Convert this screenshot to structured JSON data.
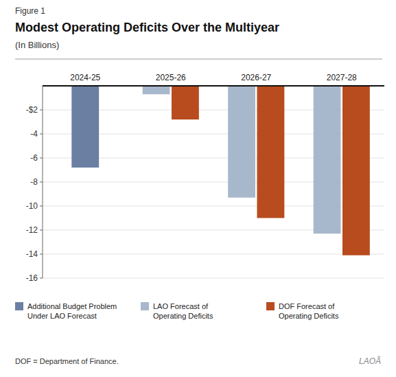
{
  "chart_data": {
    "type": "bar",
    "title": "Modest Operating Deficits Over the Multiyear",
    "subtitle": "(In Billions)",
    "annotations": [
      "Figure 1",
      "DOF = Department of Finance.",
      "LAOÂ"
    ],
    "categories": [
      "2024-25",
      "2025-26",
      "2026-27",
      "2027-28"
    ],
    "series": [
      {
        "name": "Additional Budget Problem\nUnder LAO Forecast",
        "color": "#6b7fa3",
        "values": [
          -6.8,
          null,
          null,
          null
        ]
      },
      {
        "name": "LAO Forecast of\nOperating Deficits",
        "color": "#a8b8cc",
        "values": [
          null,
          -0.7,
          -9.3,
          -12.3
        ]
      },
      {
        "name": "DOF Forecast of\nOperating Deficits",
        "color": "#b84c1e",
        "values": [
          null,
          -2.8,
          -11.0,
          -14.1
        ]
      }
    ],
    "ylim": [
      -16,
      0
    ],
    "yticks": [
      {
        "value": -2,
        "label": "-$2"
      },
      -4,
      -6,
      -8,
      -10,
      -12,
      -14,
      -16
    ],
    "grid": true,
    "legend": "bottom"
  }
}
